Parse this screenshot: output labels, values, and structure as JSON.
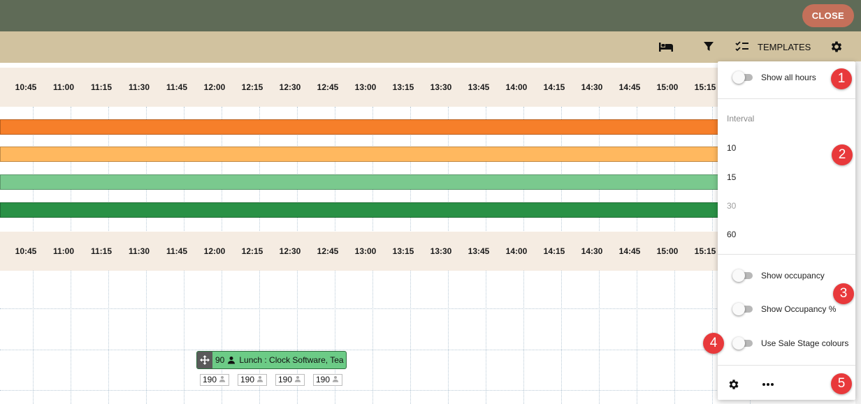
{
  "topbar": {
    "close_label": "CLOSE"
  },
  "toolbar": {
    "templates_label": "TEMPLATES",
    "icons": [
      "bed-icon",
      "filter-icon",
      "checklist-icon",
      "gear-icon"
    ]
  },
  "timeline": {
    "times": [
      "10:45",
      "11:00",
      "11:15",
      "11:30",
      "11:45",
      "12:00",
      "12:15",
      "12:30",
      "12:45",
      "13:00",
      "13:15",
      "13:30",
      "13:45",
      "14:00",
      "14:15",
      "14:30",
      "14:45",
      "15:00",
      "15:15"
    ],
    "bars": [
      {
        "color": "#f67f2a"
      },
      {
        "color": "#ffb85f"
      },
      {
        "color": "#7ac98e"
      },
      {
        "color": "#2a9146"
      }
    ],
    "event": {
      "count": "90",
      "title": "Lunch : Clock Software, Tea",
      "color": "#6ccb86"
    },
    "capacities": [
      "190",
      "190",
      "190",
      "190"
    ]
  },
  "panel": {
    "show_all_hours": "Show all hours",
    "interval_label": "Interval",
    "intervals": [
      {
        "value": "10",
        "disabled": false
      },
      {
        "value": "15",
        "disabled": false
      },
      {
        "value": "30",
        "disabled": true
      },
      {
        "value": "60",
        "disabled": false
      }
    ],
    "show_occupancy": "Show occupancy",
    "show_occupancy_pct": "Show Occupancy %",
    "use_sale_stage_colours": "Use Sale Stage colours"
  },
  "markers": [
    "1",
    "2",
    "3",
    "4",
    "5"
  ]
}
